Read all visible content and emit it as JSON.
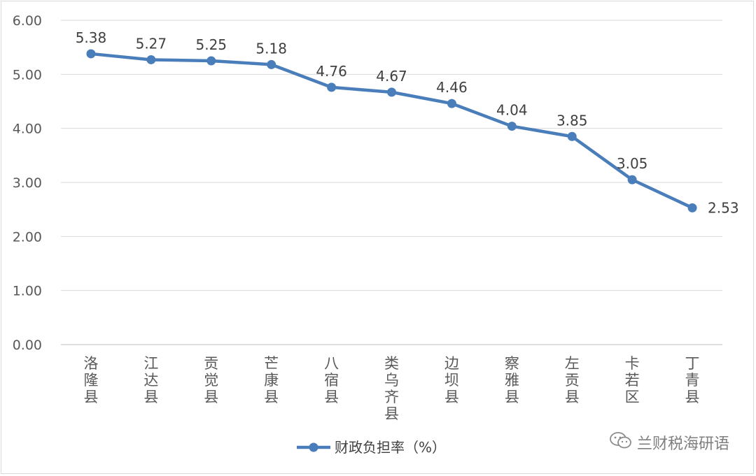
{
  "chart_data": {
    "type": "line",
    "categories": [
      "洛隆县",
      "江达县",
      "贡觉县",
      "芒康县",
      "八宿县",
      "类乌齐县",
      "边坝县",
      "察雅县",
      "左贡县",
      "卡若区",
      "丁青县"
    ],
    "series": [
      {
        "name": "财政负担率（%）",
        "values": [
          5.38,
          5.27,
          5.25,
          5.18,
          4.76,
          4.67,
          4.46,
          4.04,
          3.85,
          3.05,
          2.53
        ]
      }
    ],
    "data_labels": [
      "5.38",
      "5.27",
      "5.25",
      "5.18",
      "4.76",
      "4.67",
      "4.46",
      "4.04",
      "3.85",
      "3.05",
      "2.53"
    ],
    "yticks": [
      "0.00",
      "1.00",
      "2.00",
      "3.00",
      "4.00",
      "5.00",
      "6.00"
    ],
    "ylim": [
      0,
      6
    ],
    "grid": true,
    "legend_position": "bottom",
    "series_color": "#4a7ebb",
    "title": "",
    "xlabel": "",
    "ylabel": ""
  },
  "watermark": {
    "text": "兰财税海研语",
    "icon": "wechat-icon"
  }
}
